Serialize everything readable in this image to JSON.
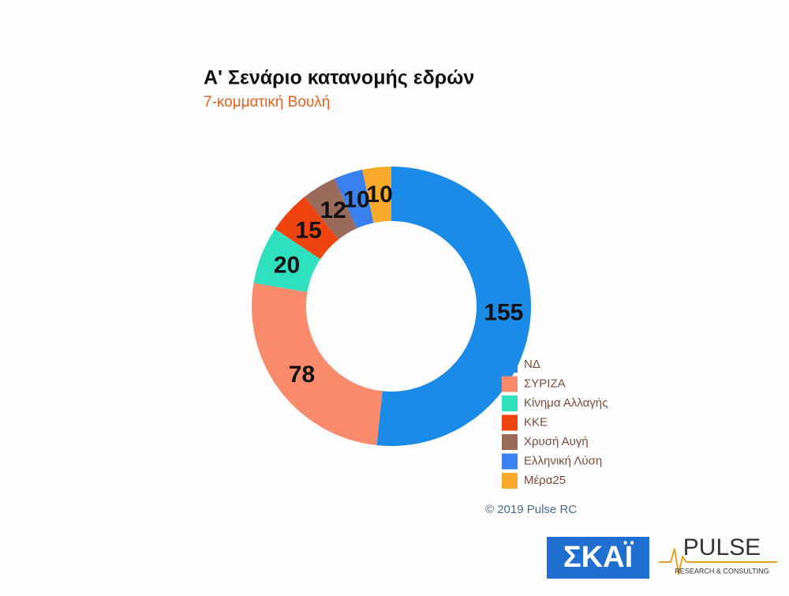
{
  "chart_data": {
    "type": "donut",
    "title": "Α' Σενάριο κατανομής εδρών",
    "subtitle": "7-κομματική Βουλή",
    "categories": [
      "ΝΔ",
      "ΣΥΡΙΖΑ",
      "Κίνημα Αλλαγής",
      "ΚΚΕ",
      "Χρυσή Αυγή",
      "Ελληνική Λύση",
      "Μέρα25"
    ],
    "values": [
      155,
      78,
      20,
      15,
      12,
      10,
      10
    ],
    "colors": [
      "#1a8be6",
      "#f98b6d",
      "#2fe0c0",
      "#f0440f",
      "#9a6a5a",
      "#3a80f0",
      "#f8aa2a"
    ],
    "legend": "bottom-right"
  },
  "credit": "© 2019 Pulse RC",
  "logos": {
    "skai": "ΣΚΑΪ",
    "pulse": "PULSE",
    "pulse_tagline": "RESEARCH & CONSULTING"
  }
}
